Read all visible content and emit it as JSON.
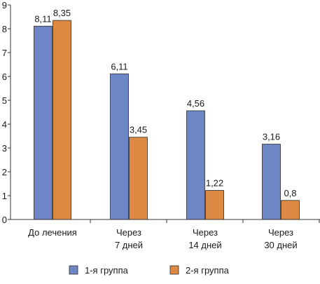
{
  "chart_data": {
    "type": "bar",
    "categories": [
      [
        "До лечения"
      ],
      [
        "Через",
        "7 дней"
      ],
      [
        "Через",
        "14 дней"
      ],
      [
        "Через",
        "30 дней"
      ]
    ],
    "series": [
      {
        "name": "1-я группа",
        "color": "#6f86c6",
        "values": [
          8.11,
          6.11,
          4.56,
          3.16
        ],
        "labels": [
          "8,11",
          "6,11",
          "4,56",
          "3,16"
        ]
      },
      {
        "name": "2-я группа",
        "color": "#dc8a43",
        "values": [
          8.35,
          3.45,
          1.22,
          0.8
        ],
        "labels": [
          "8,35",
          "3,45",
          "1,22",
          "0,8"
        ]
      }
    ],
    "yticks": [
      0,
      1,
      2,
      3,
      4,
      5,
      6,
      7,
      8,
      9
    ],
    "ylim": [
      0,
      9
    ],
    "grid": false,
    "legend_position": "bottom"
  }
}
